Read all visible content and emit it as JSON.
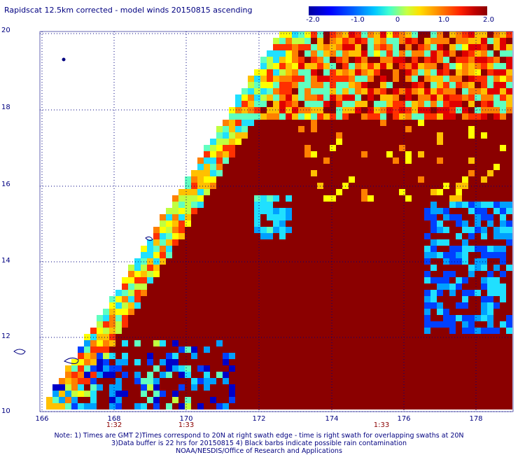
{
  "title": "Rapidscat 12.5km corrected - model winds 20150815 ascending",
  "colorbar": {
    "ticks": [
      "-2.0",
      "-1.0",
      "0",
      "1.0",
      "2.0"
    ],
    "range": [
      -2.0,
      2.0
    ]
  },
  "y_axis": {
    "ticks": [
      "20",
      "18",
      "16",
      "14",
      "12",
      "10"
    ]
  },
  "x_axis": {
    "ticks": [
      "166",
      "168",
      "170",
      "172",
      "174",
      "176",
      "178"
    ]
  },
  "swath_times": [
    "1:32",
    "1:33",
    "1:33"
  ],
  "notes": [
    "Note: 1) Times are GMT 2)Times correspond to 20N at right swath edge - time is right swath for overlapping swaths at 20N",
    "3)Data buffer is 22 hrs for 20150815 4) Black barbs indicate possible rain contamination",
    "NOAA/NESDIS/Office of Research and Applications"
  ],
  "colors": {
    "label": "#000080",
    "time": "#8b0000",
    "dominant": "#8b0000"
  }
}
